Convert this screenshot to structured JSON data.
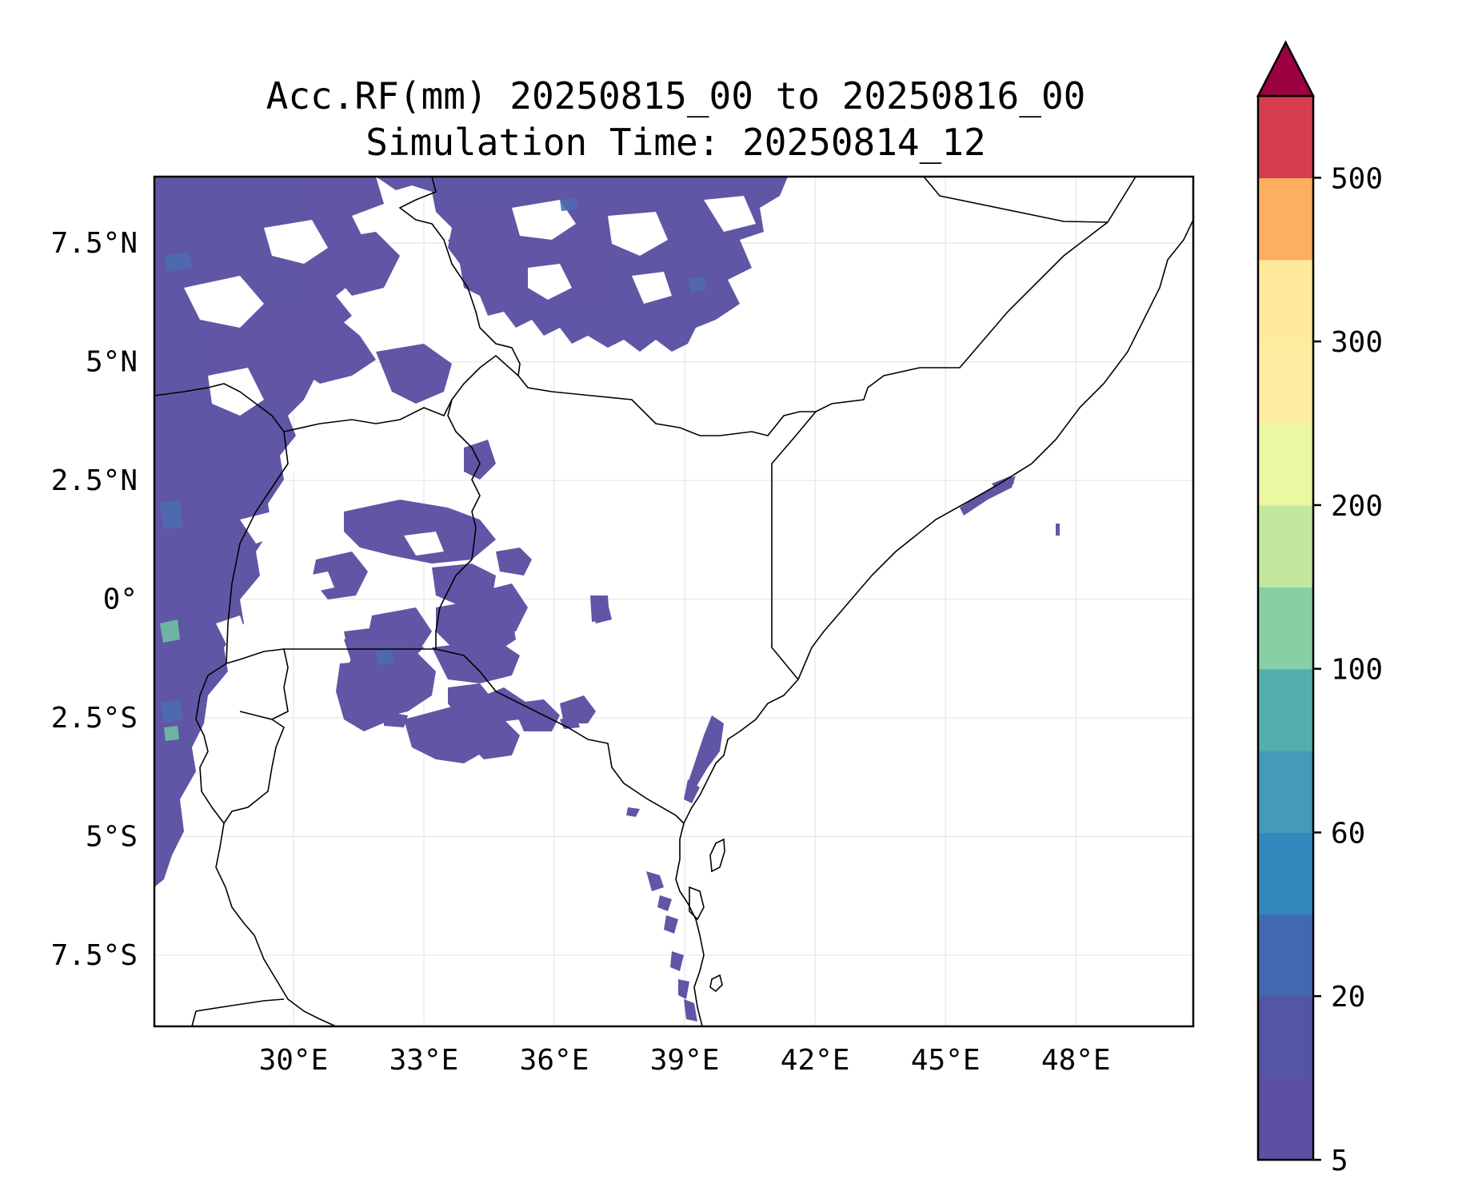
{
  "title": {
    "line1": "Acc.RF(mm) 20250815_00 to 20250816_00",
    "line2": "Simulation Time: 20250814_12"
  },
  "map": {
    "lon_range": [
      26.8,
      50.7
    ],
    "lat_range": [
      -9.0,
      8.9
    ],
    "gridlines": true,
    "x_ticks": [
      {
        "value": 30,
        "label": "30°E"
      },
      {
        "value": 33,
        "label": "33°E"
      },
      {
        "value": 36,
        "label": "36°E"
      },
      {
        "value": 39,
        "label": "39°E"
      },
      {
        "value": 42,
        "label": "42°E"
      },
      {
        "value": 45,
        "label": "45°E"
      },
      {
        "value": 48,
        "label": "48°E"
      }
    ],
    "y_ticks": [
      {
        "value": 7.5,
        "label": "7.5°N"
      },
      {
        "value": 5,
        "label": "5°N"
      },
      {
        "value": 2.5,
        "label": "2.5°N"
      },
      {
        "value": 0,
        "label": "0°"
      },
      {
        "value": -2.5,
        "label": "2.5°S"
      },
      {
        "value": -5,
        "label": "5°S"
      },
      {
        "value": -7.5,
        "label": "7.5°S"
      }
    ]
  },
  "colorbar": {
    "extend": "max",
    "extend_color": "#9e0142",
    "levels": [
      5,
      10,
      20,
      40,
      60,
      80,
      100,
      150,
      200,
      250,
      300,
      400,
      500
    ],
    "colors": [
      "#5e4fa2",
      "#5455a5",
      "#4467b1",
      "#3288bd",
      "#439aba",
      "#54aeac",
      "#87cfa4",
      "#c3e79f",
      "#ecf7a2",
      "#feeda1",
      "#fee99d",
      "#fdae61",
      "#d53e4f"
    ],
    "tick_labels": [
      {
        "value": 5,
        "label": "5"
      },
      {
        "value": 20,
        "label": "20"
      },
      {
        "value": 60,
        "label": "60"
      },
      {
        "value": 100,
        "label": "100"
      },
      {
        "value": 200,
        "label": "200"
      },
      {
        "value": 300,
        "label": "300"
      },
      {
        "value": 500,
        "label": "500"
      }
    ]
  }
}
